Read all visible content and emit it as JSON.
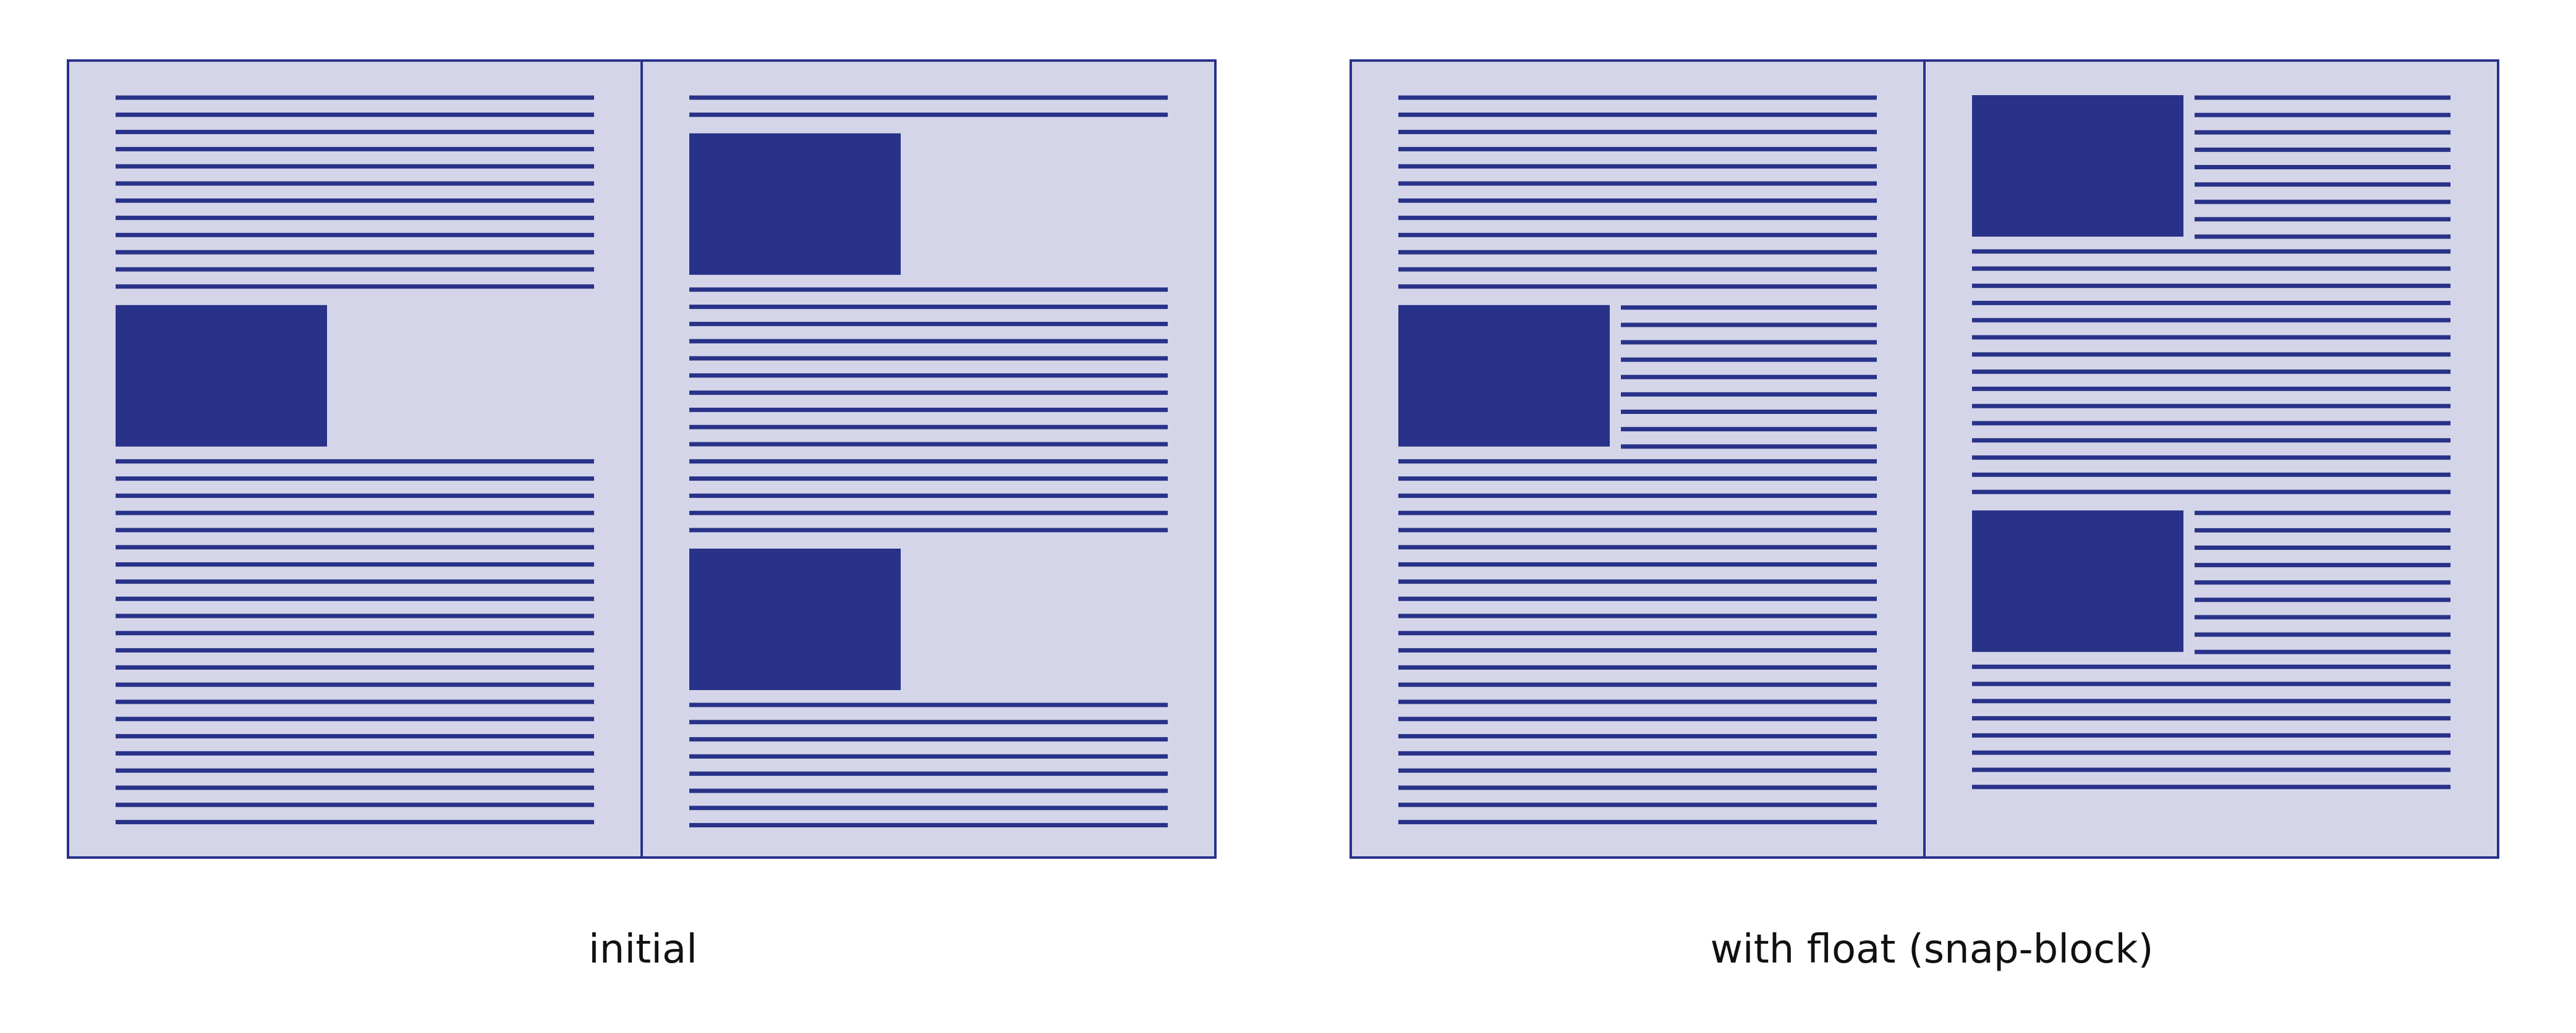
{
  "colors": {
    "background": "#ffffff",
    "page_fill": "#d4d5e8",
    "ink": "#283289",
    "caption_text": "#111111"
  },
  "panels": [
    {
      "caption": "initial",
      "pages": [
        {
          "blocks": [
            {
              "type": "text",
              "lines": 12
            },
            {
              "type": "figure",
              "float": false
            },
            {
              "type": "text",
              "lines": 22
            }
          ]
        },
        {
          "blocks": [
            {
              "type": "text",
              "lines": 2
            },
            {
              "type": "figure",
              "float": false
            },
            {
              "type": "text",
              "lines": 15
            },
            {
              "type": "figure",
              "float": false
            },
            {
              "type": "text",
              "lines": 8
            }
          ]
        }
      ]
    },
    {
      "caption": "with float (snap-block)",
      "pages": [
        {
          "blocks": [
            {
              "type": "text",
              "lines": 12
            },
            {
              "type": "figure",
              "float": true,
              "wrap_lines": 9
            },
            {
              "type": "text",
              "lines": 22
            }
          ]
        },
        {
          "blocks": [
            {
              "type": "figure",
              "float": true,
              "wrap_lines": 9
            },
            {
              "type": "text",
              "lines": 15
            },
            {
              "type": "figure",
              "float": true,
              "wrap_lines": 9
            },
            {
              "type": "text",
              "lines": 8
            }
          ]
        }
      ]
    }
  ]
}
